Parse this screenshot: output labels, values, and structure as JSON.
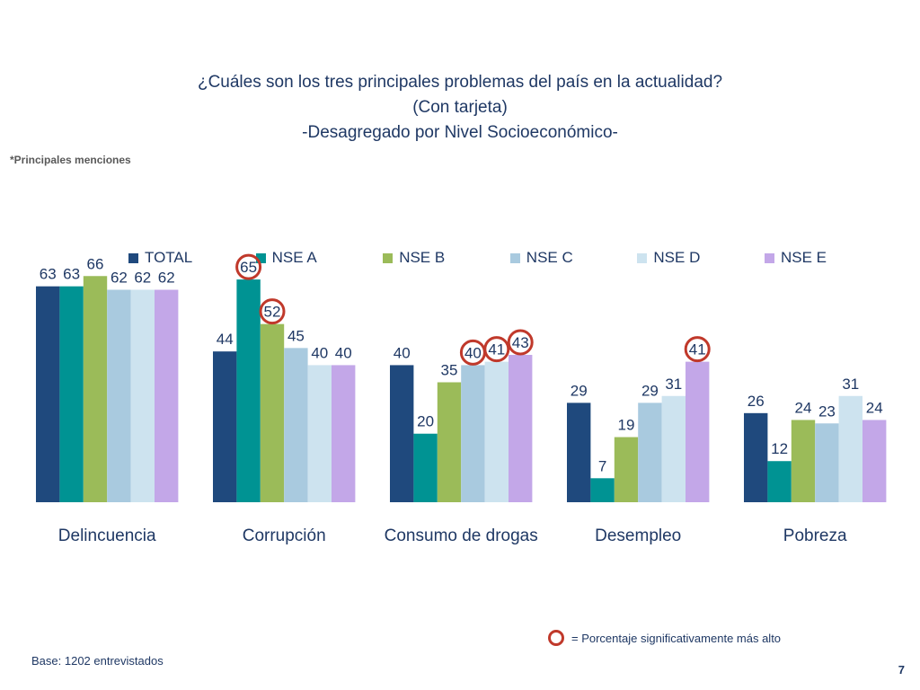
{
  "header": {
    "title_line1": "¿Cuáles son los tres principales problemas del país en la actualidad?",
    "title_line2": "(Con tarjeta)",
    "title_line3": "-Desagregado por Nivel Socioeconómico-"
  },
  "note": "*Principales menciones",
  "footer": {
    "significance_legend": "= Porcentaje significativamente más alto",
    "base": "Base: 1202 entrevistados",
    "page_number": "7"
  },
  "colors": {
    "title": "#1f3864",
    "highlight_circle": "#c0392b"
  },
  "chart_data": {
    "type": "bar",
    "title": "¿Cuáles son los tres principales problemas del país en la actualidad?",
    "xlabel": "",
    "ylabel": "",
    "ylim": [
      0,
      70
    ],
    "legend_position": "top",
    "grid": false,
    "categories": [
      "Delincuencia",
      "Corrupción",
      "Consumo de drogas",
      "Desempleo",
      "Pobreza"
    ],
    "series": [
      {
        "name": "TOTAL",
        "color": "#1f497d",
        "values": [
          63,
          44,
          40,
          29,
          26
        ]
      },
      {
        "name": "NSE A",
        "color": "#009393",
        "values": [
          63,
          65,
          20,
          7,
          12
        ]
      },
      {
        "name": "NSE B",
        "color": "#9bbb59",
        "values": [
          66,
          52,
          35,
          19,
          24
        ]
      },
      {
        "name": "NSE C",
        "color": "#a9cadf",
        "values": [
          62,
          45,
          40,
          29,
          23
        ]
      },
      {
        "name": "NSE D",
        "color": "#cde3ef",
        "values": [
          62,
          40,
          41,
          31,
          31
        ]
      },
      {
        "name": "NSE E",
        "color": "#c3a7e8",
        "values": [
          62,
          40,
          43,
          41,
          24
        ]
      }
    ],
    "highlighted": [
      {
        "category": "Corrupción",
        "series": "NSE A"
      },
      {
        "category": "Corrupción",
        "series": "NSE B"
      },
      {
        "category": "Consumo de drogas",
        "series": "NSE C"
      },
      {
        "category": "Consumo de drogas",
        "series": "NSE D"
      },
      {
        "category": "Consumo de drogas",
        "series": "NSE E"
      },
      {
        "category": "Desempleo",
        "series": "NSE E"
      }
    ]
  }
}
